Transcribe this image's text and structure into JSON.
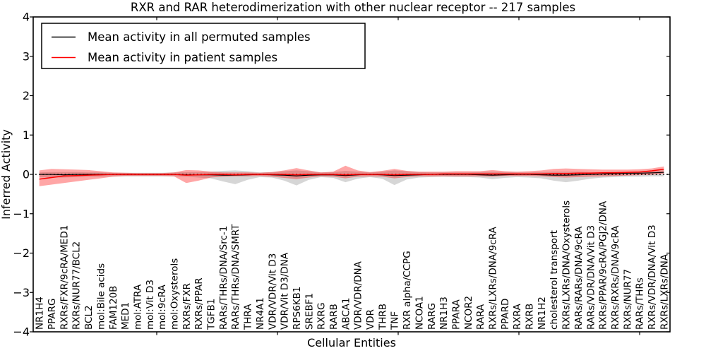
{
  "chart_data": {
    "type": "line",
    "title": "RXR and RAR heterodimerization with other nuclear receptor -- 217 samples",
    "xlabel": "Cellular Entities",
    "ylabel": "Inferred Activity",
    "ylim": [
      -4,
      4
    ],
    "yticks": [
      4,
      3,
      2,
      1,
      0,
      -1,
      -2,
      -3,
      -4
    ],
    "grid": false,
    "legend": {
      "position": "upper left"
    },
    "categories": [
      "NR1H4",
      "PPARG",
      "RXRs/FXR/9cRA/MED1",
      "RXRs/NUR77/BCL2",
      "BCL2",
      "mol:Bile acids",
      "FAM120B",
      "MED1",
      "mol:ATRA",
      "mol:Vit D3",
      "mol:9cRA",
      "mol:Oxysterols",
      "RXRs/FXR",
      "RXRs/PPAR",
      "TGFB1",
      "RARs/THRs/DNA/Src-1",
      "RARs/THRs/DNA/SMRT",
      "THRA",
      "NR4A1",
      "VDR/VDR/Vit D3",
      "VDR/Vit D3/DNA",
      "RPS6KB1",
      "SREBF1",
      "RXRG",
      "RARB",
      "ABCA1",
      "VDR/VDR/DNA",
      "VDR",
      "THRB",
      "TNF",
      "RXR alpha/CCPG",
      "NCOA1",
      "RARG",
      "NR1H3",
      "PPARA",
      "NCOR2",
      "RARA",
      "RXRs/LXRs/DNA/9cRA",
      "PPARD",
      "RXRA",
      "RXRB",
      "NR1H2",
      "cholesterol transport",
      "RXRs/LXRs/DNA/Oxysterols",
      "RARs/RARs/DNA/9cRA",
      "RARs/VDR/DNA/Vit D3",
      "RXRs/PPAR/9cRA/PGJ2/DNA",
      "RXRs/RXRs/DNA/9cRA",
      "RXRs/NUR77",
      "RARs/THRs",
      "RXRs/VDR/DNA/Vit D3",
      "RXRs/LXRs/DNA"
    ],
    "series": [
      {
        "name": "Mean activity in all permuted samples",
        "color": "#000000",
        "line_style": "solid",
        "values": [
          0,
          0,
          -0.01,
          0,
          0,
          0,
          0,
          0,
          0,
          0,
          0,
          0,
          -0.01,
          -0.01,
          -0.01,
          -0.02,
          -0.02,
          -0.01,
          0,
          -0.01,
          -0.02,
          -0.04,
          -0.02,
          -0.01,
          -0.01,
          -0.03,
          -0.01,
          0,
          -0.01,
          -0.03,
          -0.02,
          -0.01,
          0,
          0,
          0,
          0,
          -0.01,
          -0.02,
          -0.01,
          0,
          0,
          -0.01,
          -0.02,
          -0.02,
          -0.01,
          0,
          0.01,
          0.02,
          0.03,
          0.03,
          0.04,
          0.05
        ]
      },
      {
        "name": "Mean activity in patient samples",
        "color": "#ff0000",
        "line_style": "solid",
        "values": [
          -0.12,
          -0.08,
          -0.04,
          -0.03,
          -0.02,
          -0.01,
          0,
          0,
          0,
          0,
          0,
          0,
          -0.02,
          -0.01,
          0,
          0,
          -0.01,
          0,
          0,
          0,
          0,
          -0.01,
          0,
          0,
          0,
          -0.01,
          0,
          0,
          0,
          -0.01,
          0,
          0,
          0,
          0.01,
          0.01,
          0.01,
          0.01,
          0.01,
          0.01,
          0.01,
          0.01,
          0.01,
          0.02,
          0.02,
          0.03,
          0.03,
          0.04,
          0.04,
          0.05,
          0.06,
          0.09,
          0.13
        ]
      }
    ],
    "bands": [
      {
        "name": "permuted-samples-std-band",
        "color": "#000000",
        "opacity": 0.16,
        "upper": [
          0.05,
          0.06,
          0.06,
          0.06,
          0.05,
          0.05,
          0.04,
          0.04,
          0.04,
          0.04,
          0.04,
          0.05,
          0.06,
          0.06,
          0.07,
          0.09,
          0.1,
          0.08,
          0.05,
          0.06,
          0.08,
          0.1,
          0.08,
          0.05,
          0.06,
          0.09,
          0.07,
          0.05,
          0.07,
          0.1,
          0.08,
          0.06,
          0.05,
          0.05,
          0.05,
          0.05,
          0.06,
          0.07,
          0.06,
          0.05,
          0.05,
          0.06,
          0.07,
          0.07,
          0.07,
          0.06,
          0.06,
          0.07,
          0.07,
          0.08,
          0.09,
          0.1
        ],
        "lower": [
          -0.07,
          -0.08,
          -0.08,
          -0.07,
          -0.06,
          -0.06,
          -0.05,
          -0.05,
          -0.05,
          -0.05,
          -0.05,
          -0.05,
          -0.06,
          -0.08,
          -0.1,
          -0.18,
          -0.25,
          -0.14,
          -0.07,
          -0.08,
          -0.16,
          -0.28,
          -0.14,
          -0.07,
          -0.09,
          -0.2,
          -0.11,
          -0.07,
          -0.11,
          -0.27,
          -0.13,
          -0.08,
          -0.07,
          -0.06,
          -0.07,
          -0.07,
          -0.08,
          -0.12,
          -0.09,
          -0.07,
          -0.08,
          -0.1,
          -0.16,
          -0.2,
          -0.16,
          -0.11,
          -0.08,
          -0.07,
          -0.06,
          -0.06,
          -0.05,
          -0.05
        ]
      },
      {
        "name": "patient-samples-std-band",
        "color": "#ff0000",
        "opacity": 0.35,
        "upper": [
          0.1,
          0.14,
          0.13,
          0.12,
          0.11,
          0.08,
          0.05,
          0.04,
          0.03,
          0.03,
          0.03,
          0.05,
          0.11,
          0.1,
          0.07,
          0.05,
          0.05,
          0.05,
          0.04,
          0.06,
          0.1,
          0.16,
          0.1,
          0.05,
          0.07,
          0.22,
          0.1,
          0.06,
          0.09,
          0.14,
          0.09,
          0.07,
          0.07,
          0.07,
          0.08,
          0.08,
          0.08,
          0.11,
          0.08,
          0.07,
          0.08,
          0.1,
          0.14,
          0.15,
          0.14,
          0.13,
          0.12,
          0.12,
          0.12,
          0.13,
          0.15,
          0.2
        ],
        "lower": [
          -0.3,
          -0.26,
          -0.22,
          -0.18,
          -0.14,
          -0.1,
          -0.06,
          -0.04,
          -0.04,
          -0.04,
          -0.04,
          -0.05,
          -0.22,
          -0.16,
          -0.08,
          -0.06,
          -0.05,
          -0.05,
          -0.04,
          -0.06,
          -0.09,
          -0.12,
          -0.08,
          -0.05,
          -0.06,
          -0.1,
          -0.06,
          -0.05,
          -0.06,
          -0.1,
          -0.07,
          -0.05,
          -0.05,
          -0.05,
          -0.05,
          -0.05,
          -0.05,
          -0.06,
          -0.04,
          -0.04,
          -0.04,
          -0.05,
          -0.07,
          -0.08,
          -0.07,
          -0.06,
          -0.05,
          -0.04,
          -0.03,
          -0.02,
          -0.01,
          0.02
        ]
      }
    ],
    "reference_line": {
      "value": 0,
      "style": "dotted",
      "color": "#000000"
    }
  }
}
